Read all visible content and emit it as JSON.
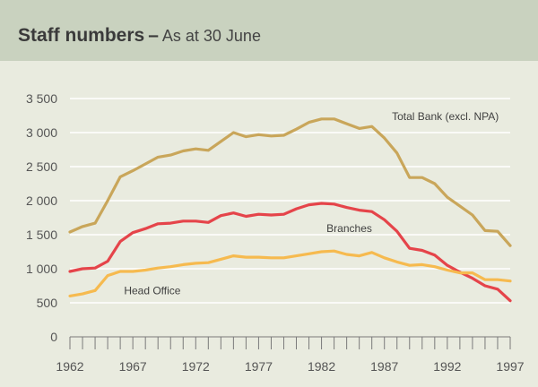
{
  "header": {
    "title": "Staff numbers",
    "separator": "–",
    "subtitle": "As at 30 June"
  },
  "chart_data": {
    "type": "line",
    "title": "Staff numbers – As at 30 June",
    "xlabel": "",
    "ylabel": "",
    "xlim": [
      1962,
      1997
    ],
    "ylim": [
      0,
      3500
    ],
    "grid": true,
    "x_tick_labels": [
      "1962",
      "1967",
      "1972",
      "1977",
      "1982",
      "1987",
      "1992",
      "1997"
    ],
    "y_tick_labels": [
      "0",
      "500",
      "1 000",
      "1 500",
      "2 000",
      "2 500",
      "3 000",
      "3 500"
    ],
    "x": [
      1962,
      1963,
      1964,
      1965,
      1966,
      1967,
      1968,
      1969,
      1970,
      1971,
      1972,
      1973,
      1974,
      1975,
      1976,
      1977,
      1978,
      1979,
      1980,
      1981,
      1982,
      1983,
      1984,
      1985,
      1986,
      1987,
      1988,
      1989,
      1990,
      1991,
      1992,
      1993,
      1994,
      1995,
      1996,
      1997
    ],
    "series": [
      {
        "name": "Total Bank (excl. NPA)",
        "color": "#c9a65a",
        "values": [
          1540,
          1620,
          1670,
          2000,
          2350,
          2440,
          2540,
          2640,
          2670,
          2730,
          2760,
          2740,
          2870,
          3000,
          2940,
          2970,
          2950,
          2960,
          3050,
          3150,
          3200,
          3200,
          3130,
          3060,
          3090,
          2920,
          2700,
          2340,
          2340,
          2250,
          2050,
          1920,
          1790,
          1560,
          1550,
          1340
        ]
      },
      {
        "name": "Branches",
        "color": "#e5444a",
        "values": [
          960,
          1000,
          1010,
          1110,
          1400,
          1530,
          1590,
          1660,
          1670,
          1700,
          1700,
          1680,
          1780,
          1820,
          1770,
          1800,
          1790,
          1800,
          1880,
          1940,
          1960,
          1950,
          1900,
          1860,
          1840,
          1720,
          1550,
          1300,
          1270,
          1200,
          1050,
          950,
          860,
          750,
          700,
          530
        ]
      },
      {
        "name": "Head Office",
        "color": "#f6ba4f",
        "values": [
          600,
          630,
          680,
          900,
          960,
          960,
          980,
          1010,
          1030,
          1060,
          1080,
          1090,
          1140,
          1190,
          1170,
          1170,
          1160,
          1160,
          1190,
          1220,
          1250,
          1260,
          1210,
          1190,
          1240,
          1160,
          1100,
          1050,
          1060,
          1030,
          980,
          940,
          940,
          840,
          840,
          820
        ]
      }
    ],
    "annotations": [
      "Total Bank (excl. NPA)",
      "Branches",
      "Head Office"
    ]
  }
}
